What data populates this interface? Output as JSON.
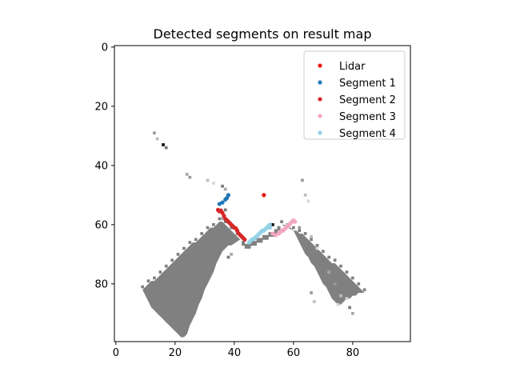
{
  "chart_data": {
    "type": "scatter",
    "title": "Detected segments on result map",
    "xlabel": "",
    "ylabel": "",
    "xlim": [
      -0.5,
      99.5
    ],
    "ylim": [
      99.5,
      -0.5
    ],
    "y_inverted": true,
    "x_ticks": [
      "0",
      "20",
      "40",
      "60",
      "80"
    ],
    "x_tick_values": [
      0,
      20,
      40,
      60,
      80
    ],
    "y_ticks": [
      "0",
      "20",
      "40",
      "60",
      "80"
    ],
    "y_tick_values": [
      0,
      20,
      40,
      60,
      80
    ],
    "grid": false,
    "legend_position": "top-right",
    "background_map": {
      "description_values": "occupancy grid cells (x, y) in map units",
      "left_strip": [
        [
          9,
          82
        ],
        [
          10,
          81
        ],
        [
          11,
          80
        ],
        [
          12,
          79
        ],
        [
          13,
          79
        ],
        [
          14,
          78
        ],
        [
          15,
          77
        ],
        [
          16,
          76
        ],
        [
          17,
          75
        ],
        [
          18,
          74
        ],
        [
          19,
          73
        ],
        [
          20,
          72
        ],
        [
          21,
          71
        ],
        [
          22,
          70
        ],
        [
          23,
          69
        ],
        [
          24,
          68
        ],
        [
          25,
          67
        ],
        [
          26,
          66
        ],
        [
          27,
          66
        ],
        [
          28,
          65
        ],
        [
          29,
          64
        ],
        [
          30,
          63
        ],
        [
          31,
          62
        ],
        [
          32,
          61
        ],
        [
          33,
          61
        ],
        [
          34,
          60
        ],
        [
          35,
          59
        ],
        [
          36,
          59
        ],
        [
          37,
          60
        ],
        [
          38,
          61
        ],
        [
          39,
          62
        ],
        [
          40,
          63
        ],
        [
          41,
          64
        ],
        [
          42,
          65
        ]
      ],
      "left_strip_far": [
        [
          11,
          86
        ],
        [
          12,
          88
        ],
        [
          13,
          89
        ],
        [
          14,
          90
        ],
        [
          15,
          91
        ],
        [
          16,
          92
        ],
        [
          17,
          93
        ],
        [
          18,
          94
        ],
        [
          19,
          95
        ],
        [
          20,
          96
        ],
        [
          21,
          97
        ],
        [
          22,
          98
        ],
        [
          23,
          98
        ],
        [
          24,
          97
        ],
        [
          25,
          94
        ],
        [
          26,
          92
        ],
        [
          27,
          90
        ],
        [
          28,
          87
        ],
        [
          29,
          85
        ],
        [
          30,
          82
        ],
        [
          31,
          80
        ],
        [
          32,
          78
        ],
        [
          33,
          76
        ],
        [
          34,
          73
        ],
        [
          35,
          71
        ],
        [
          36,
          69
        ],
        [
          37,
          68
        ],
        [
          38,
          67
        ],
        [
          39,
          67
        ]
      ],
      "right_strip": [
        [
          56,
          60
        ],
        [
          57,
          60
        ],
        [
          58,
          61
        ],
        [
          59,
          61
        ],
        [
          60,
          62
        ],
        [
          61,
          62
        ],
        [
          62,
          63
        ],
        [
          63,
          63
        ],
        [
          64,
          64
        ],
        [
          65,
          65
        ],
        [
          66,
          66
        ],
        [
          67,
          67
        ],
        [
          68,
          68
        ],
        [
          69,
          69
        ],
        [
          70,
          70
        ],
        [
          71,
          71
        ],
        [
          72,
          72
        ],
        [
          73,
          73
        ],
        [
          74,
          73
        ],
        [
          75,
          74
        ],
        [
          76,
          75
        ],
        [
          77,
          76
        ],
        [
          78,
          77
        ],
        [
          79,
          78
        ],
        [
          80,
          79
        ],
        [
          81,
          80
        ],
        [
          82,
          81
        ],
        [
          83,
          82
        ],
        [
          84,
          83
        ]
      ],
      "right_strip_far": [
        [
          60,
          62
        ],
        [
          61,
          64
        ],
        [
          62,
          66
        ],
        [
          63,
          68
        ],
        [
          64,
          70
        ],
        [
          65,
          71
        ],
        [
          66,
          73
        ],
        [
          67,
          74
        ],
        [
          68,
          76
        ],
        [
          69,
          78
        ],
        [
          70,
          80
        ],
        [
          71,
          81
        ],
        [
          72,
          83
        ],
        [
          73,
          85
        ],
        [
          74,
          86
        ],
        [
          75,
          87
        ],
        [
          76,
          87
        ],
        [
          77,
          86
        ],
        [
          78,
          85
        ],
        [
          79,
          85
        ],
        [
          80,
          84
        ],
        [
          81,
          84
        ],
        [
          82,
          83
        ],
        [
          83,
          83
        ],
        [
          84,
          83
        ]
      ],
      "bridge": [
        [
          43,
          66
        ],
        [
          44,
          67
        ],
        [
          45,
          67
        ],
        [
          46,
          66
        ],
        [
          47,
          66
        ],
        [
          48,
          65
        ],
        [
          49,
          65
        ],
        [
          50,
          64
        ],
        [
          51,
          64
        ],
        [
          52,
          63
        ],
        [
          53,
          63
        ],
        [
          54,
          62
        ],
        [
          55,
          61
        ]
      ],
      "scattered": [
        [
          13,
          29
        ],
        [
          14,
          31
        ],
        [
          16,
          33
        ],
        [
          17,
          34
        ],
        [
          24,
          43
        ],
        [
          25,
          44
        ],
        [
          31,
          45
        ],
        [
          33,
          46
        ],
        [
          36,
          47
        ],
        [
          37,
          48
        ],
        [
          63,
          45
        ],
        [
          64,
          50
        ],
        [
          65,
          52
        ],
        [
          37,
          55
        ],
        [
          36,
          58
        ],
        [
          62,
          61
        ],
        [
          66,
          64
        ],
        [
          68,
          68
        ],
        [
          70,
          72
        ],
        [
          72,
          76
        ],
        [
          74,
          80
        ],
        [
          76,
          84
        ],
        [
          78,
          85
        ],
        [
          79,
          88
        ],
        [
          80,
          90
        ],
        [
          66,
          83
        ],
        [
          67,
          86
        ],
        [
          75,
          87
        ],
        [
          38,
          71
        ],
        [
          39,
          70
        ]
      ],
      "dark_cells": [
        [
          16,
          33
        ],
        [
          53,
          60
        ]
      ],
      "map_color": "#808080"
    },
    "series": [
      {
        "name": "Lidar",
        "color": "#e8170f",
        "points": [
          [
            50,
            50
          ]
        ]
      },
      {
        "name": "Segment 1",
        "color": "#1f77b4",
        "points": [
          [
            35,
            53
          ],
          [
            36,
            52.5
          ],
          [
            37,
            51.5
          ],
          [
            37.5,
            51
          ],
          [
            38,
            50
          ]
        ]
      },
      {
        "name": "Segment 2",
        "color": "#d62728",
        "points": [
          [
            34.5,
            55
          ],
          [
            35,
            55.5
          ],
          [
            35.5,
            55.2
          ],
          [
            36,
            56
          ],
          [
            36.5,
            57
          ],
          [
            37,
            58
          ],
          [
            37.5,
            58.5
          ],
          [
            38,
            59
          ],
          [
            38.5,
            59.5
          ],
          [
            39,
            60
          ],
          [
            39.5,
            60.5
          ],
          [
            40,
            61
          ],
          [
            40.5,
            61.2
          ],
          [
            41,
            62
          ],
          [
            41.5,
            63
          ],
          [
            42,
            63.5
          ],
          [
            42.5,
            64
          ],
          [
            43,
            64.5
          ],
          [
            43.5,
            65
          ]
        ]
      },
      {
        "name": "Segment 3",
        "color": "#f4a6c0",
        "points": [
          [
            53,
            63
          ],
          [
            54,
            63.5
          ],
          [
            55,
            63
          ],
          [
            55.5,
            62.5
          ],
          [
            56,
            62
          ],
          [
            57,
            61.5
          ],
          [
            57.5,
            61
          ],
          [
            58,
            60.5
          ],
          [
            58.5,
            60
          ],
          [
            59,
            59.5
          ],
          [
            59.5,
            59
          ],
          [
            60,
            58.5
          ],
          [
            60.5,
            59
          ],
          [
            56.5,
            62
          ]
        ]
      },
      {
        "name": "Segment 4",
        "color": "#94d2e6",
        "points": [
          [
            45,
            66
          ],
          [
            45.5,
            65.5
          ],
          [
            46,
            65
          ],
          [
            46.5,
            64.8
          ],
          [
            47,
            64.5
          ],
          [
            47.5,
            64
          ],
          [
            48,
            63.5
          ],
          [
            48.5,
            63
          ],
          [
            49,
            62.5
          ],
          [
            49.5,
            62
          ],
          [
            50,
            62
          ],
          [
            50.5,
            61.5
          ],
          [
            51,
            61
          ],
          [
            51.5,
            60.5
          ],
          [
            52,
            60
          ],
          [
            52,
            61
          ]
        ]
      }
    ]
  }
}
